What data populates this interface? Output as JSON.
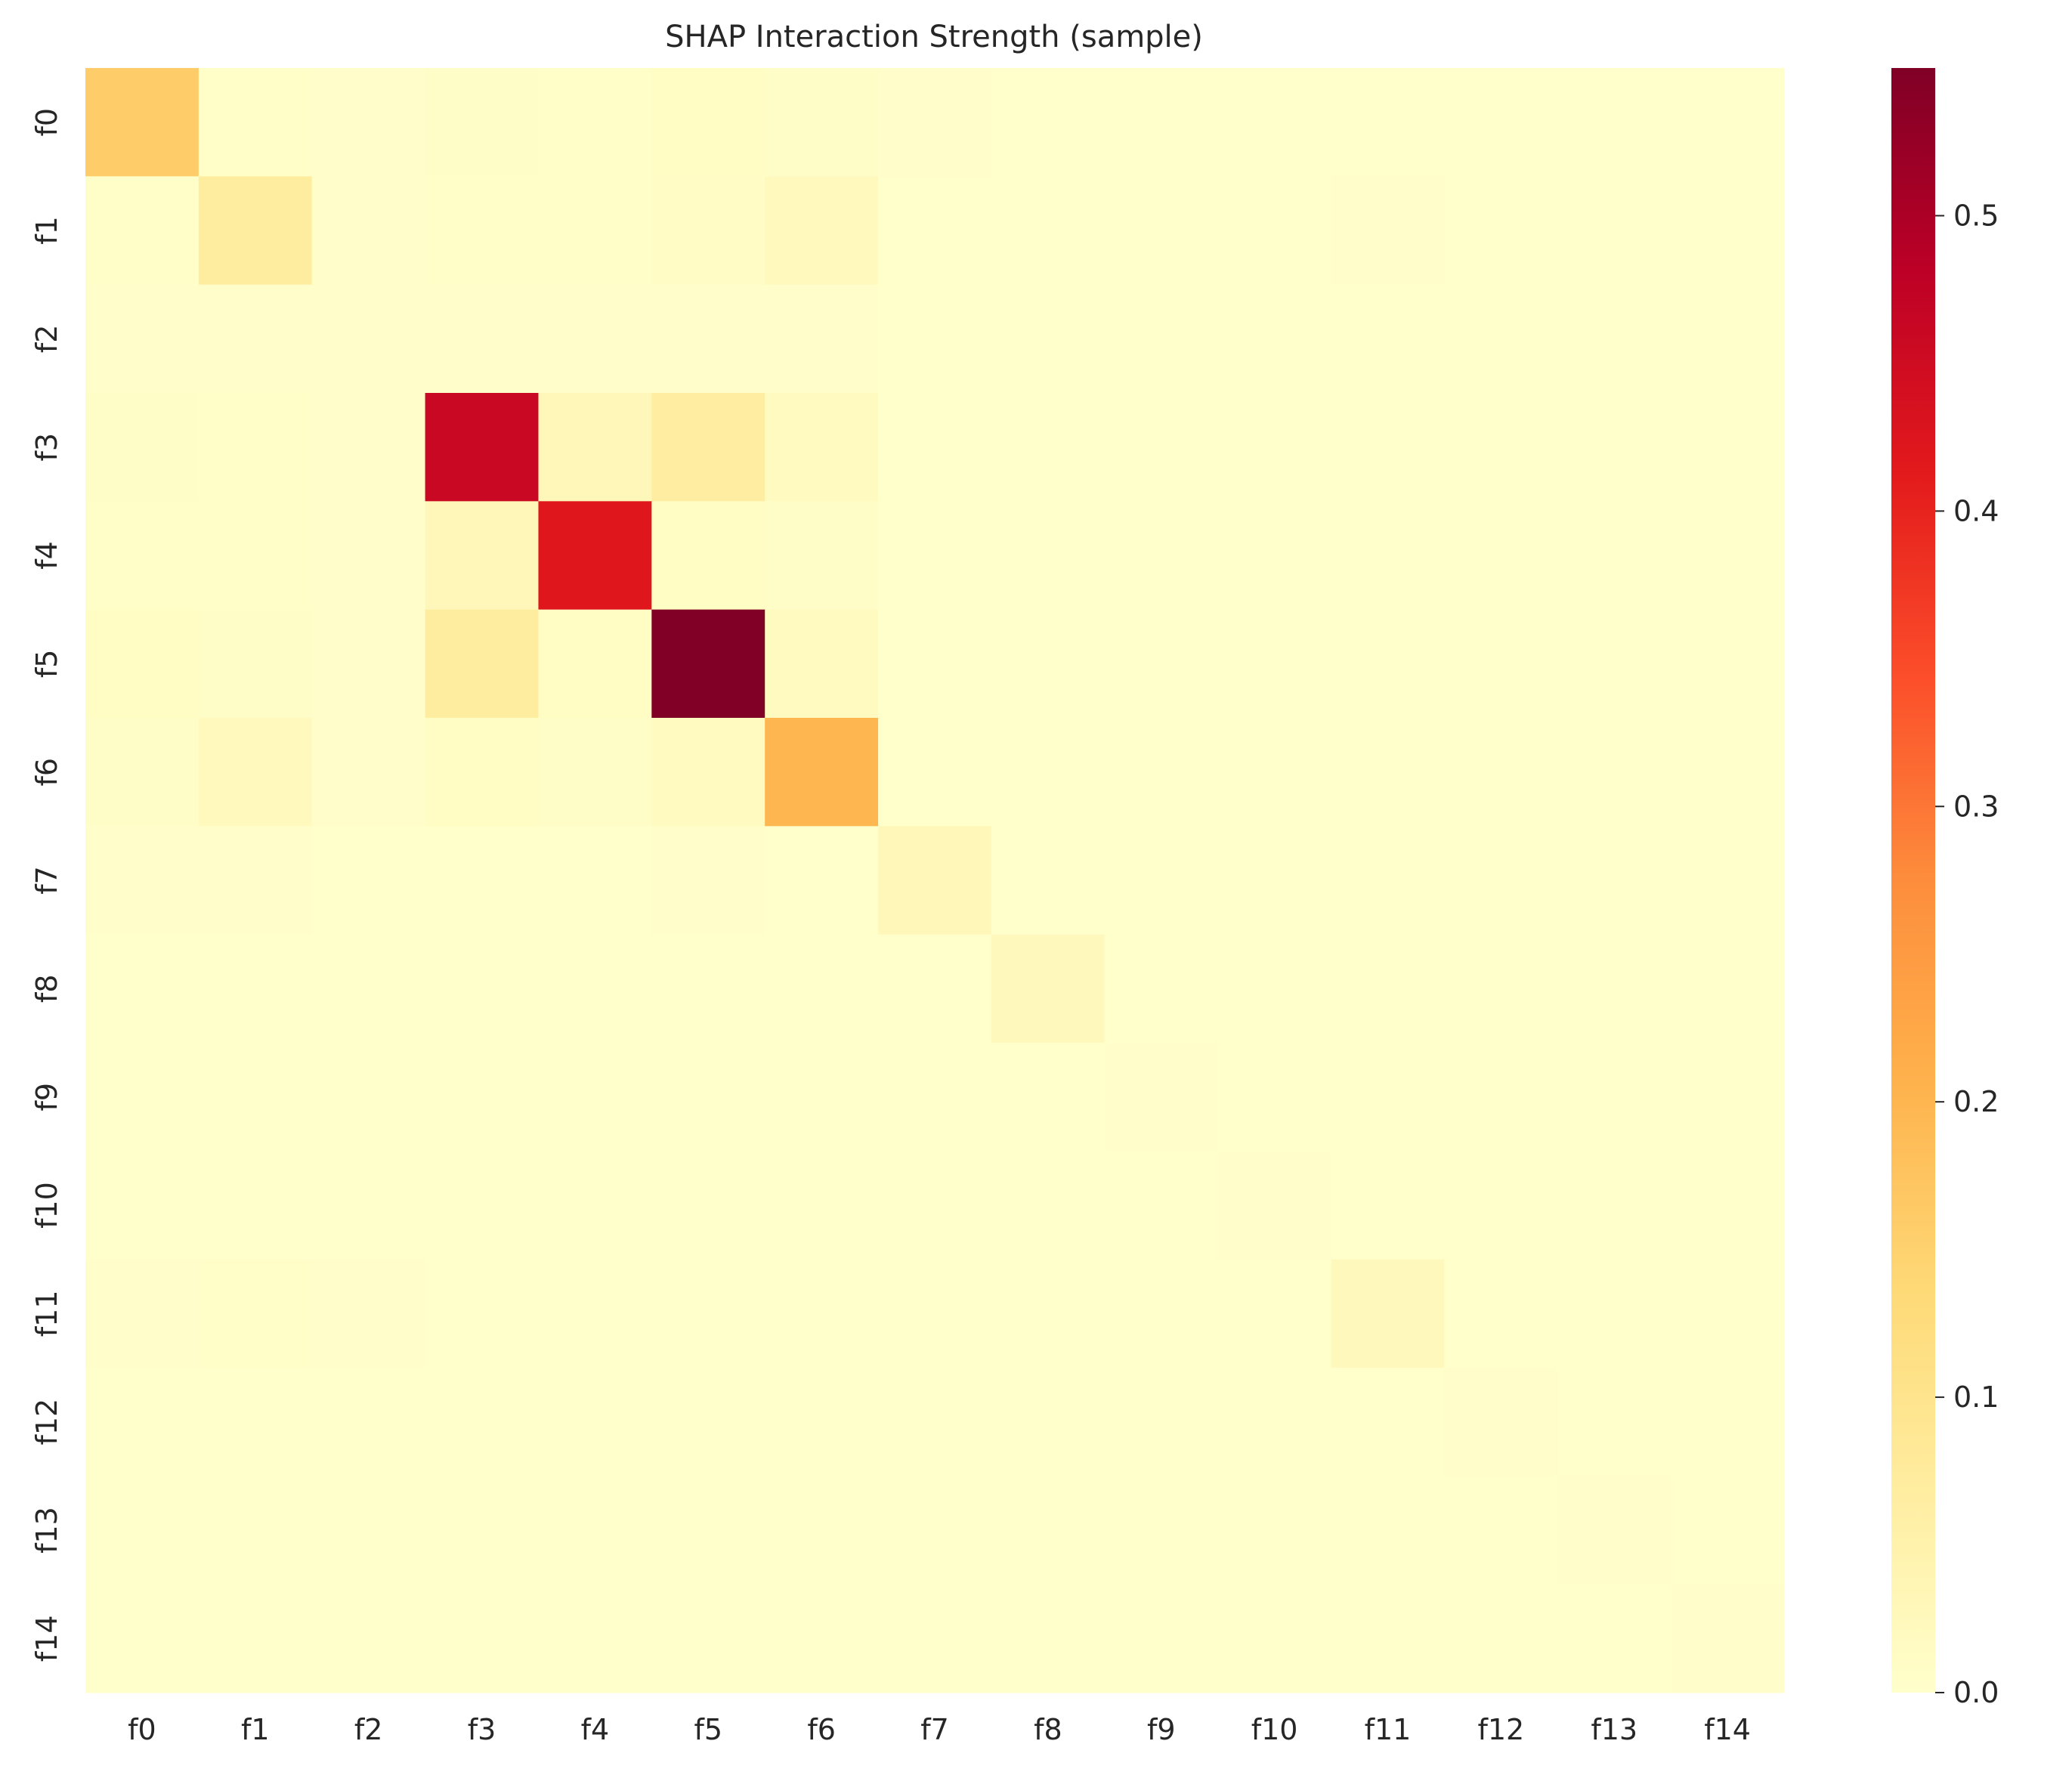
{
  "chart_data": {
    "type": "heatmap",
    "title": "SHAP Interaction Strength (sample)",
    "xlabel": "",
    "ylabel": "",
    "x_categories": [
      "f0",
      "f1",
      "f2",
      "f3",
      "f4",
      "f5",
      "f6",
      "f7",
      "f8",
      "f9",
      "f10",
      "f11",
      "f12",
      "f13",
      "f14"
    ],
    "y_categories": [
      "f0",
      "f1",
      "f2",
      "f3",
      "f4",
      "f5",
      "f6",
      "f7",
      "f8",
      "f9",
      "f10",
      "f11",
      "f12",
      "f13",
      "f14"
    ],
    "values": [
      [
        0.16,
        0.004,
        0.002,
        0.008,
        0.004,
        0.012,
        0.008,
        0.002,
        0.001,
        0.001,
        0.001,
        0.001,
        0.001,
        0.001,
        0.001
      ],
      [
        0.004,
        0.07,
        0.003,
        0.004,
        0.004,
        0.01,
        0.022,
        0.001,
        0.001,
        0.001,
        0.001,
        0.003,
        0.001,
        0.001,
        0.001
      ],
      [
        0.003,
        0.003,
        0.002,
        0.002,
        0.002,
        0.003,
        0.002,
        0.001,
        0.001,
        0.001,
        0.001,
        0.001,
        0.001,
        0.001,
        0.001
      ],
      [
        0.008,
        0.004,
        0.002,
        0.46,
        0.03,
        0.065,
        0.02,
        0.001,
        0.001,
        0.001,
        0.001,
        0.001,
        0.001,
        0.001,
        0.001
      ],
      [
        0.004,
        0.004,
        0.002,
        0.03,
        0.42,
        0.012,
        0.008,
        0.001,
        0.001,
        0.001,
        0.001,
        0.001,
        0.001,
        0.001,
        0.001
      ],
      [
        0.012,
        0.008,
        0.002,
        0.07,
        0.012,
        0.55,
        0.02,
        0.001,
        0.001,
        0.001,
        0.001,
        0.001,
        0.001,
        0.001,
        0.001
      ],
      [
        0.008,
        0.022,
        0.002,
        0.012,
        0.008,
        0.02,
        0.2,
        0.001,
        0.001,
        0.001,
        0.001,
        0.001,
        0.001,
        0.001,
        0.001
      ],
      [
        0.002,
        0.002,
        0.001,
        0.001,
        0.001,
        0.003,
        0.001,
        0.03,
        0.001,
        0.001,
        0.001,
        0.001,
        0.001,
        0.001,
        0.001
      ],
      [
        0.001,
        0.001,
        0.001,
        0.001,
        0.001,
        0.001,
        0.001,
        0.001,
        0.025,
        0.001,
        0.001,
        0.001,
        0.001,
        0.001,
        0.001
      ],
      [
        0.001,
        0.001,
        0.001,
        0.001,
        0.001,
        0.001,
        0.001,
        0.001,
        0.001,
        0.002,
        0.001,
        0.001,
        0.001,
        0.001,
        0.001
      ],
      [
        0.001,
        0.001,
        0.001,
        0.001,
        0.001,
        0.001,
        0.001,
        0.001,
        0.001,
        0.001,
        0.002,
        0.001,
        0.001,
        0.001,
        0.001
      ],
      [
        0.002,
        0.004,
        0.002,
        0.001,
        0.001,
        0.001,
        0.001,
        0.001,
        0.001,
        0.001,
        0.001,
        0.025,
        0.001,
        0.001,
        0.001
      ],
      [
        0.001,
        0.001,
        0.001,
        0.001,
        0.001,
        0.001,
        0.001,
        0.001,
        0.001,
        0.001,
        0.001,
        0.001,
        0.002,
        0.001,
        0.001
      ],
      [
        0.001,
        0.001,
        0.001,
        0.001,
        0.001,
        0.001,
        0.001,
        0.001,
        0.001,
        0.001,
        0.001,
        0.001,
        0.001,
        0.002,
        0.001
      ],
      [
        0.001,
        0.001,
        0.001,
        0.001,
        0.001,
        0.001,
        0.001,
        0.001,
        0.001,
        0.001,
        0.001,
        0.001,
        0.001,
        0.001,
        0.002
      ]
    ],
    "colormap": "YlOrRd",
    "colorbar": {
      "vmin": 0.0,
      "vmax": 0.55,
      "ticks": [
        0.0,
        0.1,
        0.2,
        0.3,
        0.4,
        0.5
      ],
      "tick_labels": [
        "0.0",
        "0.1",
        "0.2",
        "0.3",
        "0.4",
        "0.5"
      ],
      "position": "right"
    },
    "colormap_stops": [
      "#ffffcc",
      "#ffeda0",
      "#fed976",
      "#feb24c",
      "#fd8d3c",
      "#fc4e2a",
      "#e31a1c",
      "#bd0026",
      "#800026"
    ],
    "grid": false
  }
}
